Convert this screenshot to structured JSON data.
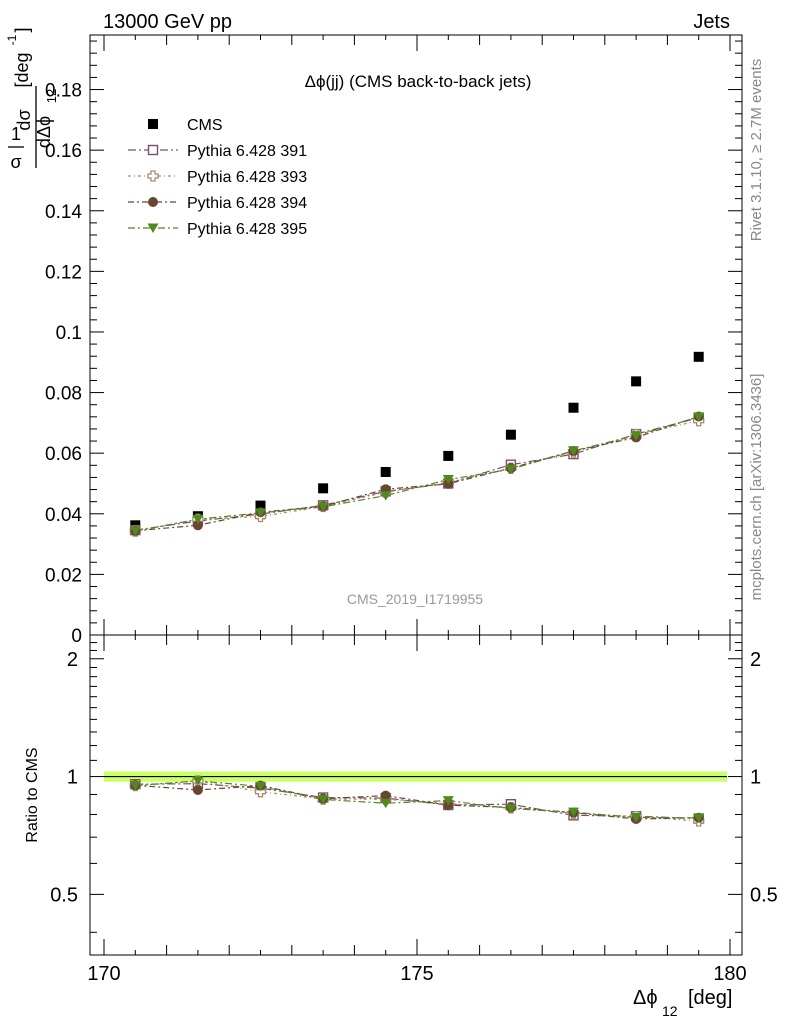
{
  "header": {
    "left": "13000 GeV pp",
    "right": "Jets"
  },
  "side_labels": {
    "rivet": "Rivet 3.1.10, ≥ 2.7M events",
    "mcplots": "mcplots.cern.ch [arXiv:1306.3436]"
  },
  "watermark": "CMS_2019_I1719955",
  "chart_data": [
    {
      "type": "scatter",
      "title": "Δϕ(jj) (CMS back-to-back jets)",
      "ylabel": "1/σ dσ/dΔϕ_12 [deg^-1]",
      "ylabel_parts": {
        "num": "1",
        "den": "σ",
        "dnum": "dσ",
        "dden": "dΔϕ",
        "sub": "12",
        "unit": "[deg",
        "exp": "-1",
        "close": "]"
      },
      "xlim": [
        170,
        180
      ],
      "ylim": [
        0,
        0.198
      ],
      "yticks": [
        0,
        0.02,
        0.04,
        0.06,
        0.08,
        0.1,
        0.12,
        0.14,
        0.16,
        0.18
      ],
      "ytick_labels": [
        "0",
        "0.02",
        "0.04",
        "0.06",
        "0.08",
        "0.1",
        "0.12",
        "0.14",
        "0.16",
        "0.18"
      ],
      "x": [
        170.5,
        171.5,
        172.5,
        173.5,
        174.5,
        175.5,
        176.5,
        177.5,
        178.5,
        179.5
      ],
      "legend_placement": "top-left",
      "series": [
        {
          "name": "CMS",
          "color": "#000000",
          "marker": "filled-square",
          "values": [
            0.0362,
            0.0392,
            0.0427,
            0.0484,
            0.0538,
            0.0591,
            0.0661,
            0.075,
            0.0837,
            0.0918
          ]
        },
        {
          "name": "Pythia 6.428 391",
          "color": "#7b4f6b",
          "marker": "open-square",
          "values": [
            0.0346,
            0.0376,
            0.0399,
            0.0428,
            0.0474,
            0.05,
            0.0562,
            0.0597,
            0.0663,
            0.0717
          ]
        },
        {
          "name": "Pythia 6.428 393",
          "color": "#a38c66",
          "marker": "open-cross",
          "values": [
            0.0343,
            0.0382,
            0.0391,
            0.0424,
            0.0471,
            0.0504,
            0.055,
            0.0604,
            0.0661,
            0.0707
          ]
        },
        {
          "name": "Pythia 6.428 394",
          "color": "#6a4632",
          "marker": "filled-circle",
          "values": [
            0.0344,
            0.0362,
            0.0405,
            0.0425,
            0.0481,
            0.0499,
            0.0551,
            0.0607,
            0.0652,
            0.0721
          ]
        },
        {
          "name": "Pythia 6.428 395",
          "color": "#4e8a1e",
          "marker": "filled-triangle-down",
          "values": [
            0.0343,
            0.0382,
            0.0403,
            0.0423,
            0.046,
            0.0513,
            0.0547,
            0.0608,
            0.0658,
            0.072
          ]
        }
      ]
    },
    {
      "type": "scatter",
      "ylabel": "Ratio to CMS",
      "xlabel": "Δϕ_12 [deg]",
      "xlabel_parts": {
        "main": "Δϕ",
        "sub": "12",
        "unit": "[deg]"
      },
      "xlim": [
        170,
        180
      ],
      "ylim": [
        0.35,
        2.3
      ],
      "yticks": [
        0.5,
        1,
        2
      ],
      "ytick_labels": [
        "0.5",
        "1",
        "2"
      ],
      "xticks": [
        170,
        175,
        180
      ],
      "xtick_labels": [
        "170",
        "175",
        "180"
      ],
      "x": [
        170.5,
        171.5,
        172.5,
        173.5,
        174.5,
        175.5,
        176.5,
        177.5,
        178.5,
        179.5
      ],
      "band": {
        "center": 1.0,
        "half_width": 0.03,
        "color": "#ccff66"
      },
      "series": [
        {
          "name": "Pythia 6.428 391",
          "values": [
            0.956,
            0.959,
            0.934,
            0.884,
            0.881,
            0.846,
            0.85,
            0.796,
            0.792,
            0.781
          ]
        },
        {
          "name": "Pythia 6.428 393",
          "values": [
            0.948,
            0.975,
            0.915,
            0.876,
            0.875,
            0.853,
            0.832,
            0.806,
            0.79,
            0.77
          ]
        },
        {
          "name": "Pythia 6.428 394",
          "values": [
            0.95,
            0.924,
            0.948,
            0.878,
            0.894,
            0.845,
            0.834,
            0.809,
            0.779,
            0.785
          ]
        },
        {
          "name": "Pythia 6.428 395",
          "values": [
            0.948,
            0.975,
            0.944,
            0.874,
            0.855,
            0.868,
            0.828,
            0.811,
            0.786,
            0.784
          ]
        }
      ]
    }
  ]
}
